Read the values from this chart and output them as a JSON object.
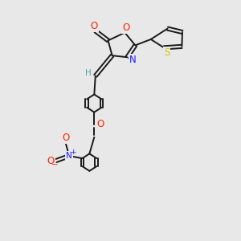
{
  "bg_color": "#e8e8e8",
  "bond_color": "#1a1a1a",
  "O_color": "#ff2200",
  "N_color": "#1a1aff",
  "S_color": "#cccc00",
  "H_color": "#5a9fa0",
  "figsize": [
    3.0,
    3.0
  ],
  "dpi": 100,
  "xlim": [
    0,
    10
  ],
  "ylim": [
    0,
    10
  ]
}
